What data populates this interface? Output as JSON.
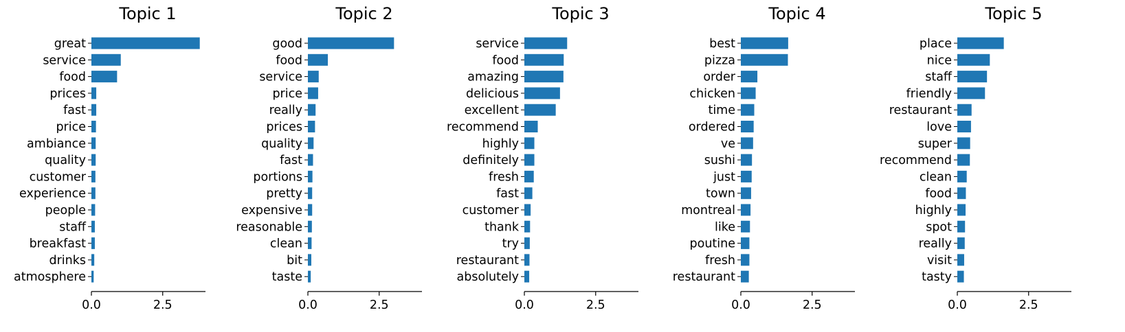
{
  "colors": {
    "bar": "#1f77b4",
    "axis": "#000000"
  },
  "chart_data": [
    {
      "type": "bar",
      "orientation": "horizontal",
      "title": "Topic 1",
      "categories": [
        "great",
        "service",
        "food",
        "prices",
        "fast",
        "price",
        "ambiance",
        "quality",
        "customer",
        "experience",
        "people",
        "staff",
        "breakfast",
        "drinks",
        "atmosphere"
      ],
      "values": [
        3.8,
        1.03,
        0.9,
        0.17,
        0.17,
        0.16,
        0.15,
        0.15,
        0.14,
        0.14,
        0.13,
        0.12,
        0.12,
        0.1,
        0.08
      ],
      "xlim": [
        0,
        4.0
      ],
      "xticks": [
        "0.0",
        "2.5"
      ]
    },
    {
      "type": "bar",
      "orientation": "horizontal",
      "title": "Topic 2",
      "categories": [
        "good",
        "food",
        "service",
        "price",
        "really",
        "prices",
        "quality",
        "fast",
        "portions",
        "pretty",
        "expensive",
        "reasonable",
        "clean",
        "bit",
        "taste"
      ],
      "values": [
        3.02,
        0.7,
        0.38,
        0.36,
        0.27,
        0.25,
        0.2,
        0.18,
        0.16,
        0.15,
        0.15,
        0.14,
        0.13,
        0.12,
        0.1
      ],
      "xlim": [
        0,
        4.0
      ],
      "xticks": [
        "0.0",
        "2.5"
      ]
    },
    {
      "type": "bar",
      "orientation": "horizontal",
      "title": "Topic 3",
      "categories": [
        "service",
        "food",
        "amazing",
        "delicious",
        "excellent",
        "recommend",
        "highly",
        "definitely",
        "fresh",
        "fast",
        "customer",
        "thank",
        "try",
        "restaurant",
        "absolutely"
      ],
      "values": [
        1.5,
        1.38,
        1.37,
        1.25,
        1.1,
        0.47,
        0.35,
        0.35,
        0.33,
        0.28,
        0.22,
        0.2,
        0.19,
        0.18,
        0.17
      ],
      "xlim": [
        0,
        4.0
      ],
      "xticks": [
        "0.0",
        "2.5"
      ]
    },
    {
      "type": "bar",
      "orientation": "horizontal",
      "title": "Topic 4",
      "categories": [
        "best",
        "pizza",
        "order",
        "chicken",
        "time",
        "ordered",
        "ve",
        "sushi",
        "just",
        "town",
        "montreal",
        "like",
        "poutine",
        "fresh",
        "restaurant"
      ],
      "values": [
        1.66,
        1.65,
        0.58,
        0.52,
        0.47,
        0.45,
        0.43,
        0.39,
        0.38,
        0.36,
        0.34,
        0.32,
        0.3,
        0.3,
        0.28
      ],
      "xlim": [
        0,
        4.0
      ],
      "xticks": [
        "0.0",
        "2.5"
      ]
    },
    {
      "type": "bar",
      "orientation": "horizontal",
      "title": "Topic 5",
      "categories": [
        "place",
        "nice",
        "staff",
        "friendly",
        "restaurant",
        "love",
        "super",
        "recommend",
        "clean",
        "food",
        "highly",
        "spot",
        "really",
        "visit",
        "tasty"
      ],
      "values": [
        1.63,
        1.14,
        1.04,
        0.97,
        0.5,
        0.48,
        0.45,
        0.44,
        0.33,
        0.3,
        0.29,
        0.27,
        0.26,
        0.24,
        0.23
      ],
      "xlim": [
        0,
        4.0
      ],
      "xticks": [
        "0.0",
        "2.5"
      ]
    }
  ]
}
